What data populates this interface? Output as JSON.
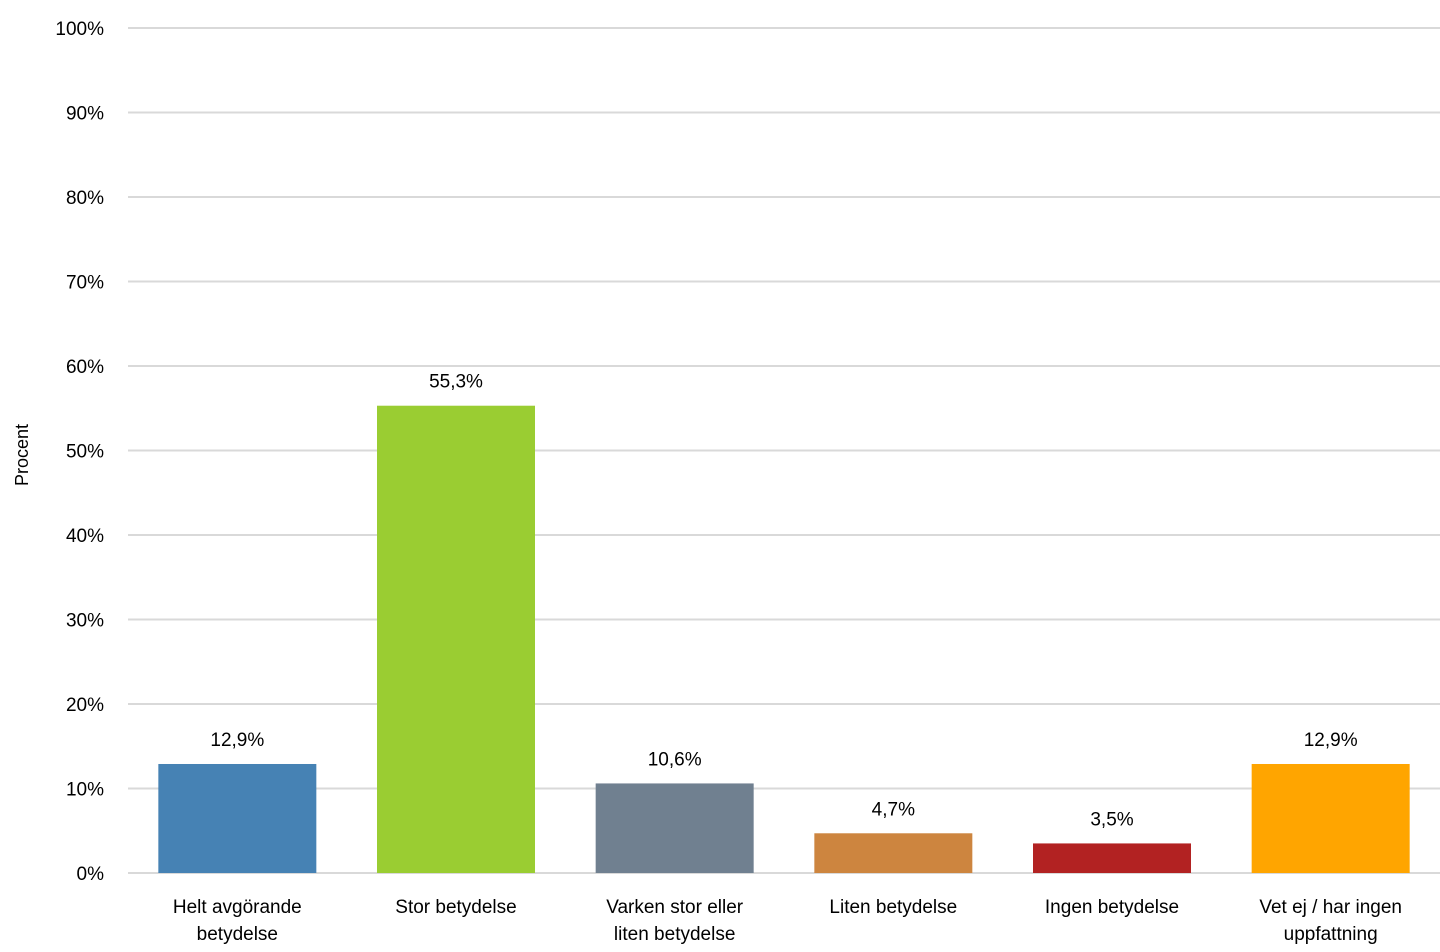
{
  "chart_data": {
    "type": "bar",
    "title": "",
    "xlabel": "",
    "ylabel": "Procent",
    "ylim": [
      0,
      100
    ],
    "yticks": [
      "0%",
      "10%",
      "20%",
      "30%",
      "40%",
      "50%",
      "60%",
      "70%",
      "80%",
      "90%",
      "100%"
    ],
    "grid": true,
    "legend": "none",
    "categories": [
      [
        "Helt avgörande",
        "betydelse"
      ],
      [
        "Stor betydelse"
      ],
      [
        "Varken stor eller",
        "liten betydelse"
      ],
      [
        "Liten betydelse"
      ],
      [
        "Ingen betydelse"
      ],
      [
        "Vet ej / har ingen",
        "uppfattning"
      ]
    ],
    "values": [
      12.9,
      55.3,
      10.6,
      4.7,
      3.5,
      12.9
    ],
    "data_labels": [
      "12,9%",
      "55,3%",
      "10,6%",
      "4,7%",
      "3,5%",
      "12,9%"
    ],
    "colors": [
      "#4682b4",
      "#9acd32",
      "#708090",
      "#cd853f",
      "#b22222",
      "#ffa500"
    ],
    "grid_color": "#d9d9d9"
  }
}
